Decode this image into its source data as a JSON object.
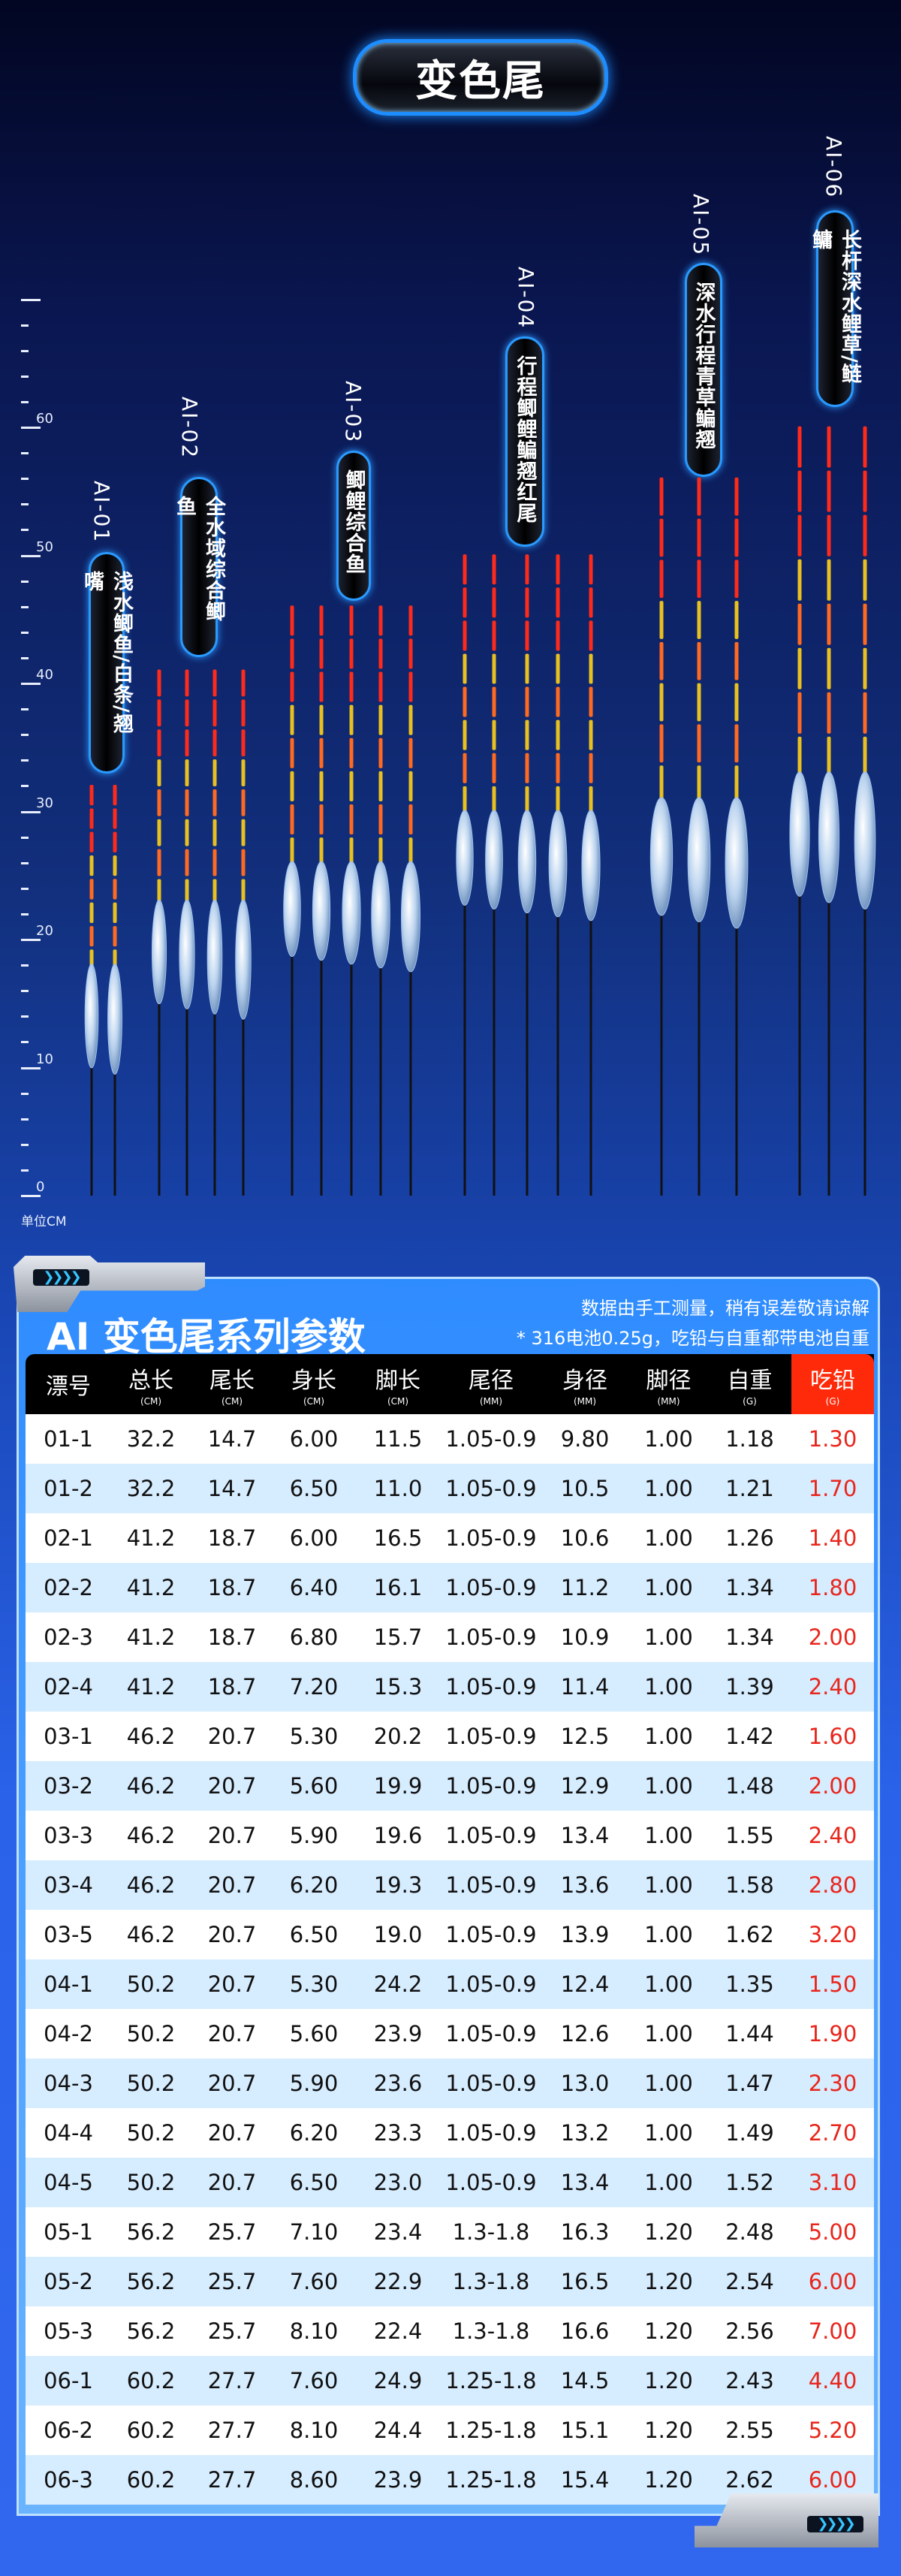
{
  "title": "变色尾",
  "ruler": {
    "ticks": [
      "0",
      "10",
      "20",
      "30",
      "40",
      "50",
      "60"
    ],
    "unit": "单位CM"
  },
  "groups": [
    {
      "code": "AI-01",
      "desc": "浅水鲫鱼/白条/翘嘴",
      "rows": [
        "01-1",
        "01-2"
      ]
    },
    {
      "code": "AI-02",
      "desc": "全水域综合鲫鱼",
      "rows": [
        "02-1",
        "02-2",
        "02-3",
        "02-4"
      ]
    },
    {
      "code": "AI-03",
      "desc": "鲫鲤综合鱼",
      "rows": [
        "03-1",
        "03-2",
        "03-3",
        "03-4",
        "03-5"
      ]
    },
    {
      "code": "AI-04",
      "desc": "行程鲫鲤鳊翘红尾",
      "rows": [
        "04-1",
        "04-2",
        "04-3",
        "04-4",
        "04-5"
      ]
    },
    {
      "code": "AI-05",
      "desc": "深水行程青草鳊翘",
      "rows": [
        "05-1",
        "05-2",
        "05-3"
      ]
    },
    {
      "code": "AI-06",
      "desc": "长杆深水鲤草/鲢鳙",
      "rows": [
        "06-1",
        "06-2",
        "06-3"
      ]
    }
  ],
  "colors": {
    "tail_red": "#ff2a1a",
    "accent": "#1e8dff",
    "lead_header": "#ff2a0a",
    "lead_text": "#e8261c"
  },
  "table": {
    "title": "AI 变色尾系列参数",
    "notes": [
      "数据由手工测量，稍有误差敬请谅解",
      "* 316电池0.25g，吃铅与自重都带电池自重"
    ],
    "columns": [
      {
        "label": "漂号",
        "unit": ""
      },
      {
        "label": "总长",
        "unit": "(CM)"
      },
      {
        "label": "尾长",
        "unit": "(CM)"
      },
      {
        "label": "身长",
        "unit": "(CM)"
      },
      {
        "label": "脚长",
        "unit": "(CM)"
      },
      {
        "label": "尾径",
        "unit": "(MM)"
      },
      {
        "label": "身径",
        "unit": "(MM)"
      },
      {
        "label": "脚径",
        "unit": "(MM)"
      },
      {
        "label": "自重",
        "unit": "(G)"
      },
      {
        "label": "吃铅",
        "unit": "(G)"
      }
    ],
    "rows": [
      [
        "01-1",
        "32.2",
        "14.7",
        "6.00",
        "11.5",
        "1.05-0.9",
        "9.80",
        "1.00",
        "1.18",
        "1.30"
      ],
      [
        "01-2",
        "32.2",
        "14.7",
        "6.50",
        "11.0",
        "1.05-0.9",
        "10.5",
        "1.00",
        "1.21",
        "1.70"
      ],
      [
        "02-1",
        "41.2",
        "18.7",
        "6.00",
        "16.5",
        "1.05-0.9",
        "10.6",
        "1.00",
        "1.26",
        "1.40"
      ],
      [
        "02-2",
        "41.2",
        "18.7",
        "6.40",
        "16.1",
        "1.05-0.9",
        "11.2",
        "1.00",
        "1.34",
        "1.80"
      ],
      [
        "02-3",
        "41.2",
        "18.7",
        "6.80",
        "15.7",
        "1.05-0.9",
        "10.9",
        "1.00",
        "1.34",
        "2.00"
      ],
      [
        "02-4",
        "41.2",
        "18.7",
        "7.20",
        "15.3",
        "1.05-0.9",
        "11.4",
        "1.00",
        "1.39",
        "2.40"
      ],
      [
        "03-1",
        "46.2",
        "20.7",
        "5.30",
        "20.2",
        "1.05-0.9",
        "12.5",
        "1.00",
        "1.42",
        "1.60"
      ],
      [
        "03-2",
        "46.2",
        "20.7",
        "5.60",
        "19.9",
        "1.05-0.9",
        "12.9",
        "1.00",
        "1.48",
        "2.00"
      ],
      [
        "03-3",
        "46.2",
        "20.7",
        "5.90",
        "19.6",
        "1.05-0.9",
        "13.4",
        "1.00",
        "1.55",
        "2.40"
      ],
      [
        "03-4",
        "46.2",
        "20.7",
        "6.20",
        "19.3",
        "1.05-0.9",
        "13.6",
        "1.00",
        "1.58",
        "2.80"
      ],
      [
        "03-5",
        "46.2",
        "20.7",
        "6.50",
        "19.0",
        "1.05-0.9",
        "13.9",
        "1.00",
        "1.62",
        "3.20"
      ],
      [
        "04-1",
        "50.2",
        "20.7",
        "5.30",
        "24.2",
        "1.05-0.9",
        "12.4",
        "1.00",
        "1.35",
        "1.50"
      ],
      [
        "04-2",
        "50.2",
        "20.7",
        "5.60",
        "23.9",
        "1.05-0.9",
        "12.6",
        "1.00",
        "1.44",
        "1.90"
      ],
      [
        "04-3",
        "50.2",
        "20.7",
        "5.90",
        "23.6",
        "1.05-0.9",
        "13.0",
        "1.00",
        "1.47",
        "2.30"
      ],
      [
        "04-4",
        "50.2",
        "20.7",
        "6.20",
        "23.3",
        "1.05-0.9",
        "13.2",
        "1.00",
        "1.49",
        "2.70"
      ],
      [
        "04-5",
        "50.2",
        "20.7",
        "6.50",
        "23.0",
        "1.05-0.9",
        "13.4",
        "1.00",
        "1.52",
        "3.10"
      ],
      [
        "05-1",
        "56.2",
        "25.7",
        "7.10",
        "23.4",
        "1.3-1.8",
        "16.3",
        "1.20",
        "2.48",
        "5.00"
      ],
      [
        "05-2",
        "56.2",
        "25.7",
        "7.60",
        "22.9",
        "1.3-1.8",
        "16.5",
        "1.20",
        "2.54",
        "6.00"
      ],
      [
        "05-3",
        "56.2",
        "25.7",
        "8.10",
        "22.4",
        "1.3-1.8",
        "16.6",
        "1.20",
        "2.56",
        "7.00"
      ],
      [
        "06-1",
        "60.2",
        "27.7",
        "7.60",
        "24.9",
        "1.25-1.8",
        "14.5",
        "1.20",
        "2.43",
        "4.40"
      ],
      [
        "06-2",
        "60.2",
        "27.7",
        "8.10",
        "24.4",
        "1.25-1.8",
        "15.1",
        "1.20",
        "2.55",
        "5.20"
      ],
      [
        "06-3",
        "60.2",
        "27.7",
        "8.60",
        "23.9",
        "1.25-1.8",
        "15.4",
        "1.20",
        "2.62",
        "6.00"
      ]
    ]
  }
}
